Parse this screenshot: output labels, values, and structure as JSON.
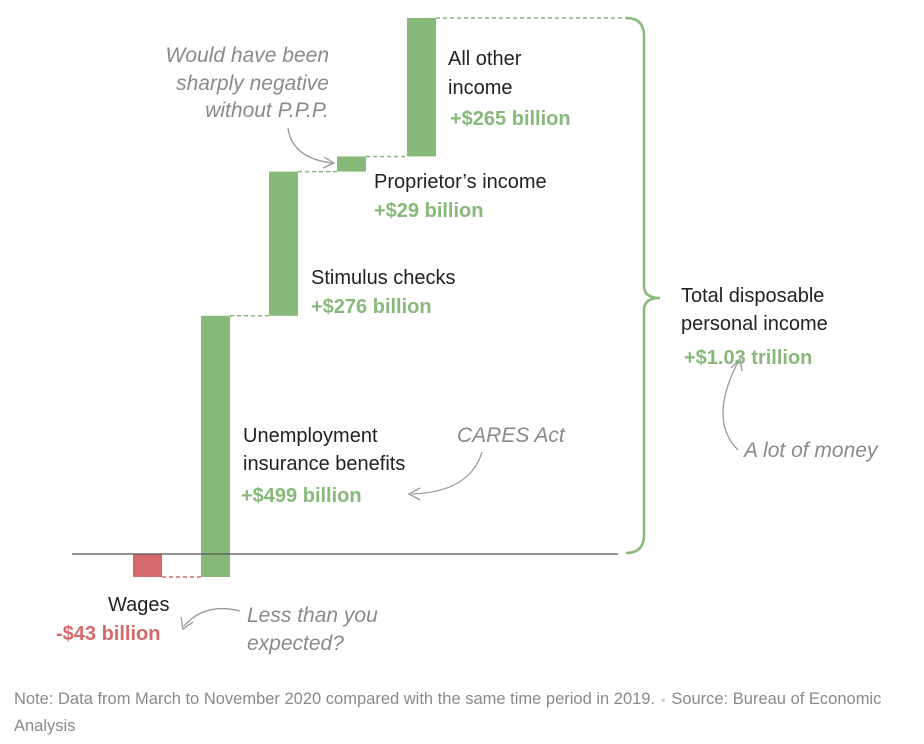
{
  "colors": {
    "positive": "#87b97a",
    "negative": "#d46a6a",
    "axis": "#555555",
    "note": "#8a8a8a",
    "text": "#222222"
  },
  "chart_data": {
    "type": "waterfall",
    "unit": "billion dollars",
    "categories": [
      "Wages",
      "Unemployment insurance benefits",
      "Stimulus checks",
      "Proprietor’s income",
      "All other income"
    ],
    "values": [
      -43,
      499,
      276,
      29,
      265
    ],
    "ylim": [
      -43,
      1026
    ],
    "total": {
      "label": "Total disposable personal income",
      "value_text": "+$1.03 trillion",
      "value": 1030
    },
    "grid": false,
    "legend": "none"
  },
  "labels": {
    "wages": {
      "name": "Wages",
      "value": "-$43 billion"
    },
    "unemployment": {
      "name_line1": "Unemployment",
      "name_line2": "insurance benefits",
      "value": "+$499 billion"
    },
    "stimulus": {
      "name": "Stimulus checks",
      "value": "+$276 billion"
    },
    "proprietor": {
      "name": "Proprietor’s income",
      "value": "+$29 billion"
    },
    "other": {
      "name_line1": "All other",
      "name_line2": "income",
      "value": "+$265 billion"
    },
    "total": {
      "line1": "Total disposable",
      "line2": "personal income",
      "value": "+$1.03 trillion"
    }
  },
  "annotations": {
    "ppp": [
      "Would have been",
      "sharply negative",
      "without P.P.P."
    ],
    "cares": "CARES Act",
    "money": "A lot of money",
    "less": [
      "Less than you",
      "expected?"
    ]
  },
  "footer": {
    "note": "Note: Data from March to November 2020 compared with the same time period in 2019.",
    "source": "Source: Bureau of Economic Analysis",
    "separator": "▪"
  }
}
